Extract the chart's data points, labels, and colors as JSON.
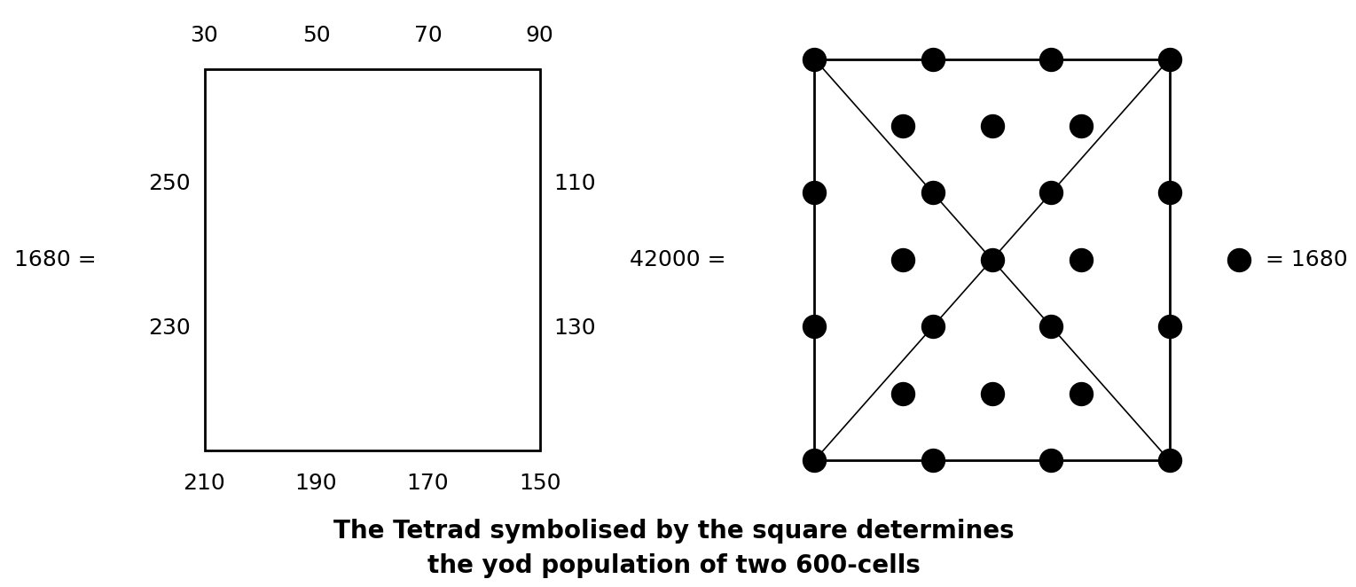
{
  "bg_color": "#ffffff",
  "left_label": "1680 =",
  "right_label": "42000 =",
  "legend_dot_label": "= 1680",
  "square_top_labels": [
    "30",
    "50",
    "70",
    "90"
  ],
  "square_bottom_labels": [
    "210",
    "190",
    "170",
    "150"
  ],
  "square_left_labels": [
    "250",
    "230"
  ],
  "square_right_labels": [
    "110",
    "130"
  ],
  "title_line1": "The Tetrad symbolised by the square determines",
  "title_line2": "the yod population of two 600-cells",
  "title_fontsize": 20,
  "label_fontsize": 18,
  "dot_color": "#000000",
  "square_color": "#000000",
  "line_color": "#000000"
}
